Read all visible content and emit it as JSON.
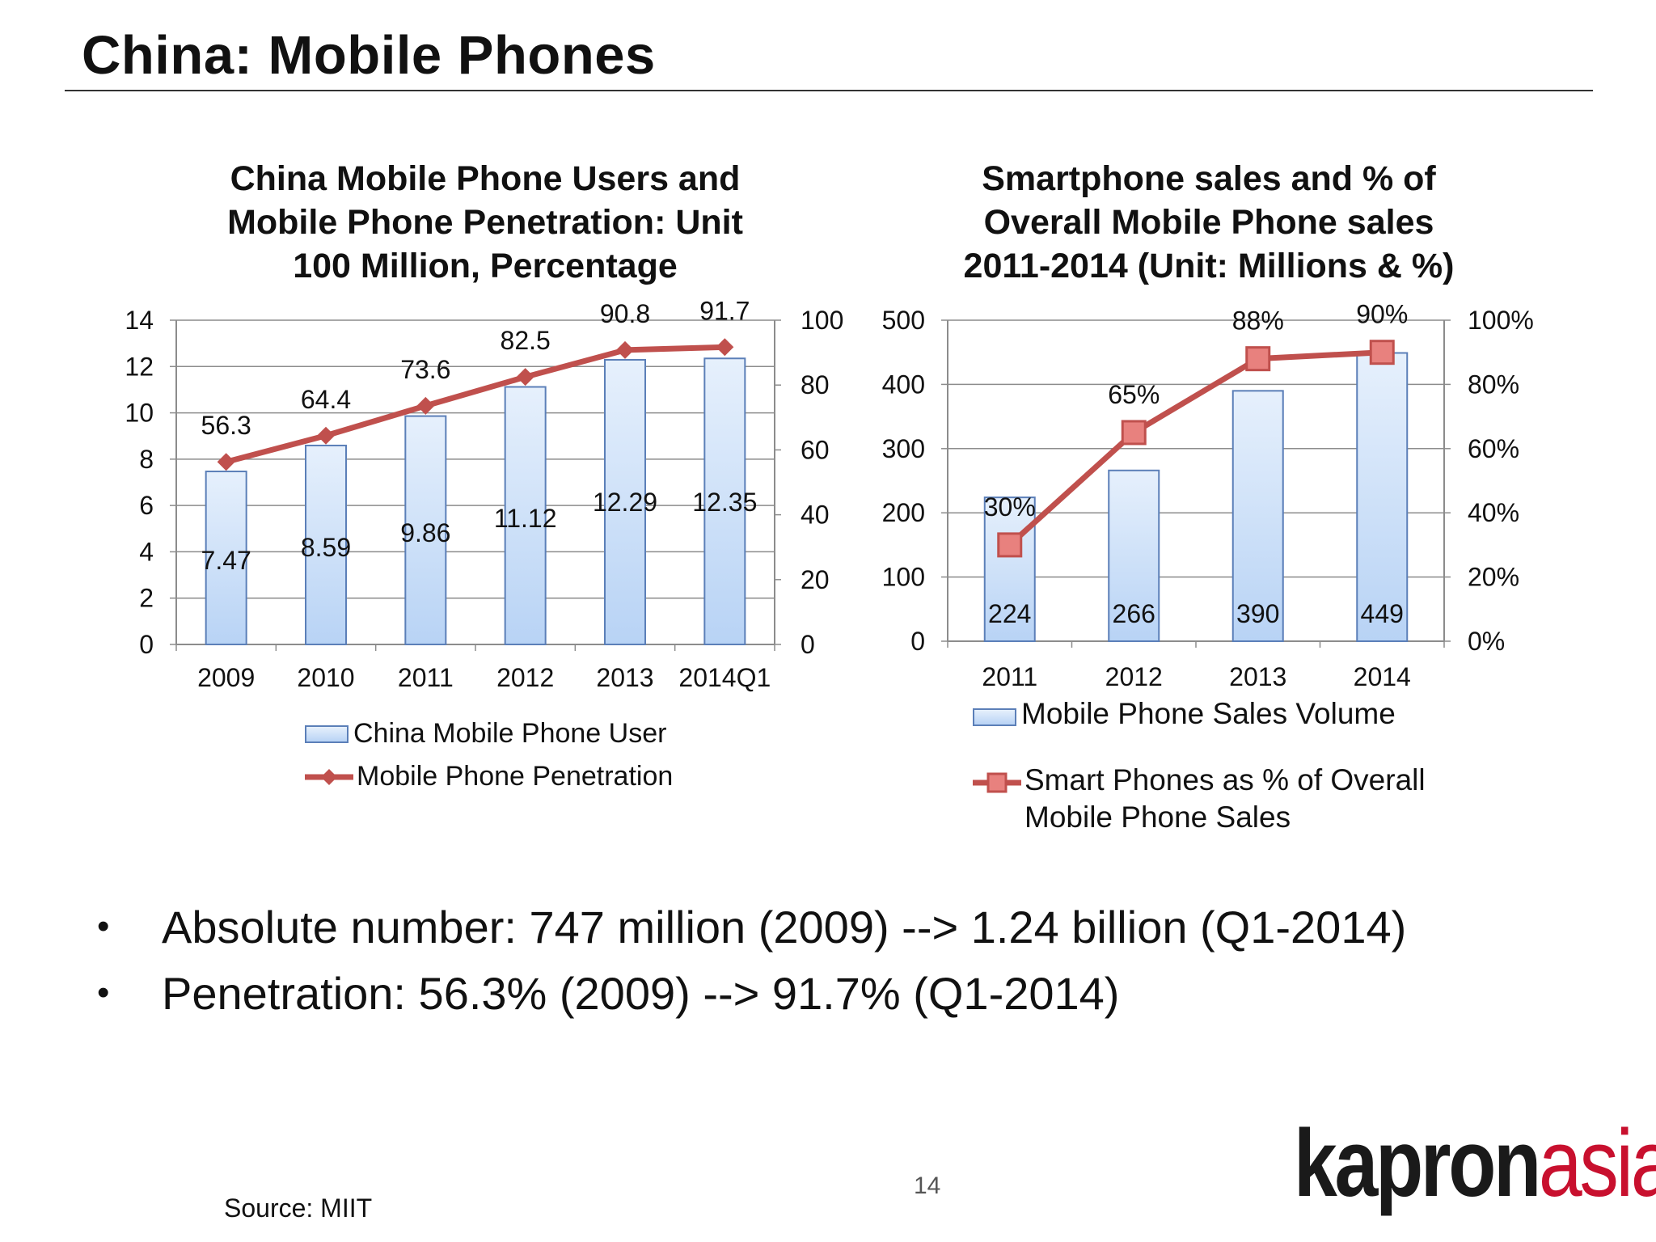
{
  "slide": {
    "title": "China: Mobile Phones",
    "bullets": [
      "Absolute number: 747 million (2009) --> 1.24 billion (Q1-2014)",
      "Penetration: 56.3% (2009) --> 91.7% (Q1-2014)"
    ],
    "bullet_glyph": "•",
    "source": "Source: MIIT",
    "page_number": "14",
    "logo": {
      "part1": "kapron",
      "part2": "asia",
      "color_dark": "#1a1a1a",
      "color_accent": "#c8102e"
    }
  },
  "colors": {
    "bar_fill_top": "#e6f0fc",
    "bar_fill_bottom": "#b8d3f5",
    "bar_stroke": "#5b7fb8",
    "line": "#c0504d",
    "grid": "#8c8c8c",
    "axis": "#8c8c8c"
  },
  "chart_data": [
    {
      "type": "bar",
      "title_lines": [
        "China Mobile Phone Users and",
        "Mobile Phone Penetration: Unit",
        "100 Million, Percentage"
      ],
      "categories": [
        "2009",
        "2010",
        "2011",
        "2012",
        "2013",
        "2014Q1"
      ],
      "series": [
        {
          "name": "China Mobile Phone User",
          "type": "bar",
          "axis": "left",
          "values": [
            7.47,
            8.59,
            9.86,
            11.12,
            12.29,
            12.35
          ],
          "labels": [
            "7.47",
            "8.59",
            "9.86",
            "11.12",
            "12.29",
            "12.35"
          ]
        },
        {
          "name": "Mobile Phone Penetration",
          "type": "line",
          "axis": "right",
          "marker": "diamond",
          "values": [
            56.3,
            64.4,
            73.6,
            82.5,
            90.8,
            91.7
          ],
          "labels": [
            "56.3",
            "64.4",
            "73.6",
            "82.5",
            "90.8",
            "91.7"
          ]
        }
      ],
      "ylim_left": [
        0,
        14
      ],
      "yticks_left": [
        "0",
        "2",
        "4",
        "6",
        "8",
        "10",
        "12",
        "14"
      ],
      "ylim_right": [
        0,
        100
      ],
      "yticks_right": [
        "0",
        "20",
        "40",
        "60",
        "80",
        "100"
      ],
      "grid": true,
      "legend_position": "bottom"
    },
    {
      "type": "bar",
      "title_lines": [
        "Smartphone sales and % of",
        "Overall Mobile Phone sales",
        "2011-2014 (Unit: Millions & %)"
      ],
      "categories": [
        "2011",
        "2012",
        "2013",
        "2014"
      ],
      "series": [
        {
          "name": "Mobile Phone Sales Volume",
          "type": "bar",
          "axis": "left",
          "values": [
            224,
            266,
            390,
            449
          ],
          "labels": [
            "224",
            "266",
            "390",
            "449"
          ]
        },
        {
          "name": "Smart Phones as % of Overall Mobile Phone Sales",
          "name_lines": [
            "Smart Phones as % of Overall",
            "Mobile Phone Sales"
          ],
          "type": "line",
          "axis": "right",
          "marker": "square",
          "values": [
            30,
            65,
            88,
            90
          ],
          "labels": [
            "30%",
            "65%",
            "88%",
            "90%"
          ]
        }
      ],
      "ylim_left": [
        0,
        500
      ],
      "yticks_left": [
        "0",
        "100",
        "200",
        "300",
        "400",
        "500"
      ],
      "ylim_right": [
        0,
        100
      ],
      "yticks_right": [
        "0%",
        "20%",
        "40%",
        "60%",
        "80%",
        "100%"
      ],
      "grid": true,
      "legend_position": "bottom"
    }
  ]
}
